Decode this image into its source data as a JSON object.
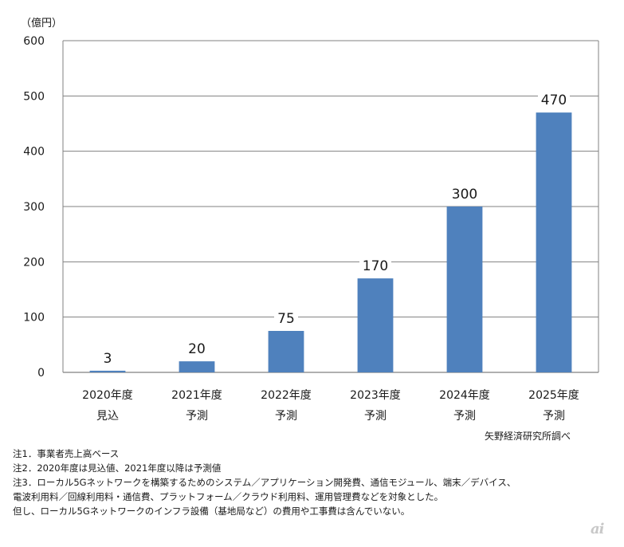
{
  "chart_data": {
    "type": "bar",
    "unit_label": "（億円）",
    "categories": [
      [
        "2020年度",
        "見込"
      ],
      [
        "2021年度",
        "予測"
      ],
      [
        "2022年度",
        "予測"
      ],
      [
        "2023年度",
        "予測"
      ],
      [
        "2024年度",
        "予測"
      ],
      [
        "2025年度",
        "予測"
      ]
    ],
    "values": [
      3,
      20,
      75,
      170,
      300,
      470
    ],
    "data_labels": [
      "3",
      "20",
      "75",
      "170",
      "300",
      "470"
    ],
    "yticks": [
      "0",
      "100",
      "200",
      "300",
      "400",
      "500",
      "600"
    ],
    "ylim": [
      0,
      600
    ],
    "grid": true,
    "bar_color": "#4f81bd",
    "grid_color": "#808080"
  },
  "source": "矢野経済研究所調べ",
  "notes": [
    "注1．事業者売上高ベース",
    "注2．2020年度は見込値、2021年度以降は予測値",
    "注3．ローカル5Gネットワークを構築するためのシステム／アプリケーション開発費、通信モジュール、端末／デバイス、",
    "電波利用料／回線利用料・通信費、プラットフォーム／クラウド利用料、運用管理費などを対象とした。",
    "但し、ローカル5Gネットワークのインフラ設備（基地局など）の費用や工事費は含んでいない。"
  ],
  "logo_text": "ai"
}
